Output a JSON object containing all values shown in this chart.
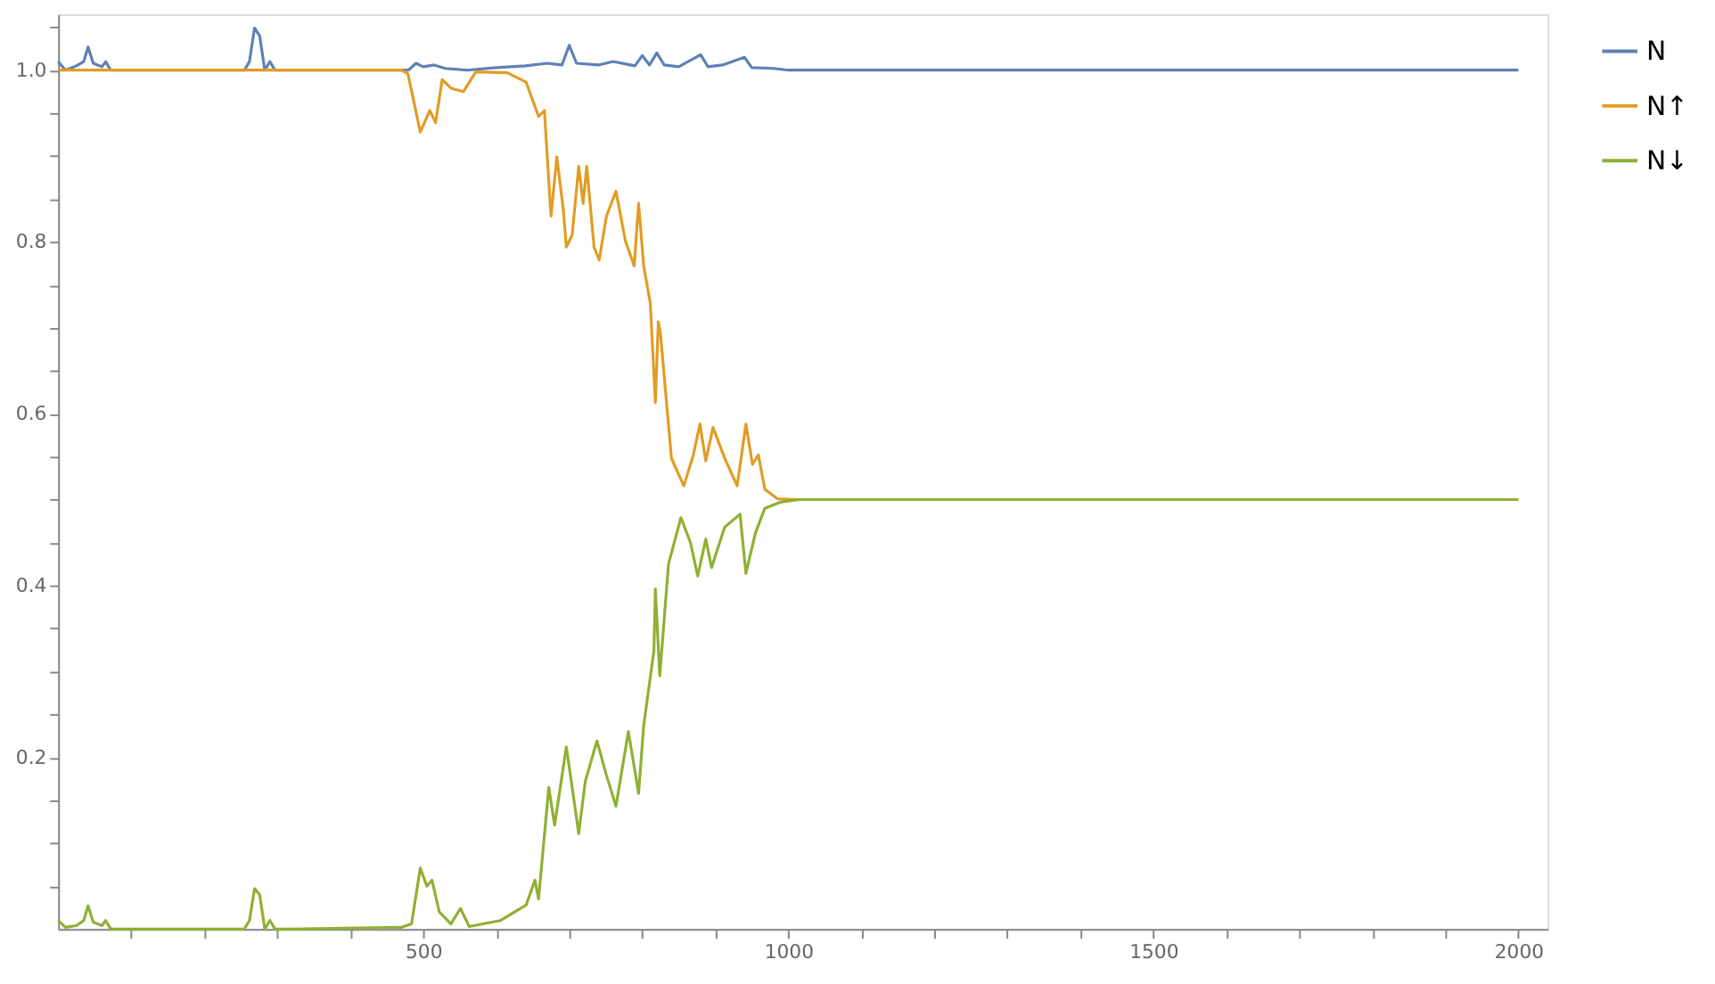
{
  "chart_data": {
    "type": "line",
    "xlim": [
      0,
      2040
    ],
    "ylim": [
      0,
      1.065
    ],
    "xticks": [
      {
        "value": 100,
        "label": null
      },
      {
        "value": 200,
        "label": null
      },
      {
        "value": 300,
        "label": null
      },
      {
        "value": 400,
        "label": null
      },
      500,
      {
        "value": 600,
        "label": null
      },
      {
        "value": 700,
        "label": null
      },
      {
        "value": 800,
        "label": null
      },
      {
        "value": 900,
        "label": null
      },
      1000,
      {
        "value": 1100,
        "label": null
      },
      {
        "value": 1200,
        "label": null
      },
      {
        "value": 1300,
        "label": null
      },
      {
        "value": 1400,
        "label": null
      },
      1500,
      {
        "value": 1600,
        "label": null
      },
      {
        "value": 1700,
        "label": null
      },
      {
        "value": 1800,
        "label": null
      },
      {
        "value": 1900,
        "label": null
      },
      2000
    ],
    "yticks": [
      {
        "value": 0.05,
        "label": null
      },
      {
        "value": 0.1,
        "label": null
      },
      {
        "value": 0.15,
        "label": null
      },
      0.2,
      {
        "value": 0.25,
        "label": null
      },
      {
        "value": 0.3,
        "label": null
      },
      {
        "value": 0.35,
        "label": null
      },
      0.4,
      {
        "value": 0.45,
        "label": null
      },
      {
        "value": 0.5,
        "label": null
      },
      {
        "value": 0.55,
        "label": null
      },
      0.6,
      {
        "value": 0.65,
        "label": null
      },
      {
        "value": 0.7,
        "label": null
      },
      {
        "value": 0.75,
        "label": null
      },
      0.8,
      {
        "value": 0.85,
        "label": null
      },
      {
        "value": 0.9,
        "label": null
      },
      {
        "value": 0.95,
        "label": null
      },
      {
        "value": 1,
        "label": "1.0"
      },
      {
        "value": 1.05,
        "label": null
      }
    ],
    "grid": false,
    "legend": "right",
    "marker": "none",
    "line_style": "solid",
    "series": [
      {
        "name": "N",
        "color": "#5e81b5",
        "x": [
          0,
          10,
          25,
          35,
          41,
          48,
          60,
          65,
          72,
          100,
          200,
          255,
          262,
          269,
          276,
          283,
          290,
          297,
          320,
          480,
          490,
          500,
          515,
          530,
          560,
          600,
          640,
          670,
          690,
          700,
          710,
          740,
          760,
          790,
          800,
          810,
          820,
          830,
          850,
          880,
          890,
          910,
          940,
          950,
          980,
          1000,
          2000
        ],
        "values": [
          1.01,
          1.0,
          1.005,
          1.01,
          1.027,
          1.008,
          1.004,
          1.01,
          1.0,
          1.0,
          1.0,
          1.0,
          1.01,
          1.049,
          1.04,
          1.0,
          1.01,
          1.0,
          1.0,
          1.0,
          1.008,
          1.004,
          1.006,
          1.002,
          1.0,
          1.003,
          1.005,
          1.008,
          1.006,
          1.029,
          1.008,
          1.006,
          1.01,
          1.005,
          1.017,
          1.006,
          1.02,
          1.006,
          1.004,
          1.018,
          1.004,
          1.006,
          1.015,
          1.003,
          1.002,
          1.0,
          1.0
        ]
      },
      {
        "name": "N↑",
        "color": "#e19c24",
        "x": [
          0,
          470,
          479,
          496,
          509,
          517,
          526,
          538,
          555,
          572,
          615,
          641,
          658,
          666,
          675,
          683,
          692,
          696,
          704,
          713,
          719,
          724,
          734,
          741,
          751,
          764,
          777,
          789,
          795,
          802,
          811,
          818,
          822,
          825,
          840,
          857,
          870,
          879,
          887,
          897,
          913,
          930,
          942,
          951,
          959,
          968,
          985,
          1015,
          2000
        ],
        "values": [
          1.0,
          1.0,
          0.996,
          0.928,
          0.953,
          0.939,
          0.989,
          0.979,
          0.975,
          0.998,
          0.997,
          0.986,
          0.946,
          0.953,
          0.83,
          0.899,
          0.837,
          0.794,
          0.808,
          0.888,
          0.845,
          0.888,
          0.794,
          0.779,
          0.83,
          0.859,
          0.801,
          0.772,
          0.845,
          0.772,
          0.729,
          0.613,
          0.707,
          0.693,
          0.548,
          0.516,
          0.552,
          0.588,
          0.545,
          0.584,
          0.548,
          0.516,
          0.588,
          0.541,
          0.552,
          0.512,
          0.501,
          0.5,
          0.5
        ]
      },
      {
        "name": "N↓",
        "color": "#8fb032",
        "x": [
          0,
          10,
          25,
          35,
          41,
          48,
          60,
          65,
          72,
          100,
          200,
          255,
          262,
          269,
          276,
          283,
          290,
          297,
          320,
          470,
          484,
          496,
          505,
          512,
          522,
          538,
          551,
          563,
          606,
          641,
          653,
          658,
          672,
          680,
          696,
          704,
          713,
          722,
          738,
          751,
          764,
          781,
          795,
          802,
          816,
          818,
          824,
          836,
          853,
          866,
          876,
          887,
          895,
          913,
          934,
          942,
          955,
          968,
          989,
          1015,
          2000
        ],
        "values": [
          0.01,
          0.002,
          0.004,
          0.01,
          0.027,
          0.008,
          0.004,
          0.01,
          0.0,
          0.0,
          0.0,
          0.0,
          0.01,
          0.047,
          0.04,
          0.0,
          0.01,
          0.0,
          0.0,
          0.002,
          0.006,
          0.071,
          0.05,
          0.057,
          0.02,
          0.006,
          0.024,
          0.003,
          0.01,
          0.028,
          0.057,
          0.035,
          0.165,
          0.121,
          0.212,
          0.165,
          0.111,
          0.172,
          0.219,
          0.179,
          0.143,
          0.23,
          0.158,
          0.237,
          0.324,
          0.396,
          0.295,
          0.425,
          0.479,
          0.45,
          0.411,
          0.454,
          0.421,
          0.468,
          0.483,
          0.414,
          0.461,
          0.49,
          0.497,
          0.5,
          0.5
        ]
      }
    ]
  }
}
